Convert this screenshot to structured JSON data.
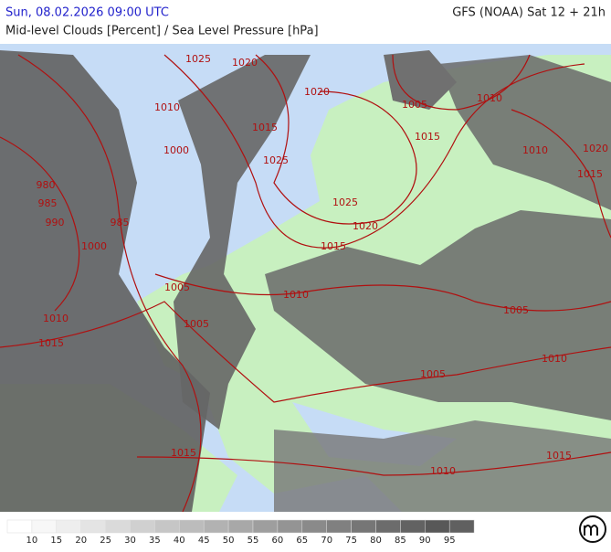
{
  "header": {
    "valid_time": "Sun, 08.02.2026 09:00 UTC",
    "model_run": "GFS (NOAA) Sat 12 + 21h",
    "parameter": "Mid-level Clouds [Percent] / Sea Level Pressure [hPa]"
  },
  "map": {
    "isobar_labels": [
      "1025",
      "1020",
      "1010",
      "1020",
      "1015",
      "1005",
      "1010",
      "1015",
      "1010",
      "1020",
      "1015",
      "1000",
      "1025",
      "980",
      "985",
      "990",
      "985",
      "1025",
      "1020",
      "1000",
      "1015",
      "1005",
      "1010",
      "1005",
      "1010",
      "1005",
      "1015",
      "1010",
      "1005",
      "1015",
      "1015",
      "1010"
    ]
  },
  "legend": {
    "labels": [
      "10",
      "15",
      "20",
      "25",
      "30",
      "35",
      "40",
      "45",
      "50",
      "55",
      "60",
      "65",
      "70",
      "75",
      "80",
      "85",
      "90",
      "95"
    ],
    "colors": [
      "#ffffff",
      "#f7f7f7",
      "#eeeeee",
      "#e4e4e4",
      "#dadada",
      "#d0d0d0",
      "#c6c6c6",
      "#bcbcbc",
      "#b2b2b2",
      "#a8a8a8",
      "#9e9e9e",
      "#949494",
      "#8a8a8a",
      "#808080",
      "#767676",
      "#6c6c6c",
      "#626262",
      "#585858",
      "#606060"
    ]
  }
}
